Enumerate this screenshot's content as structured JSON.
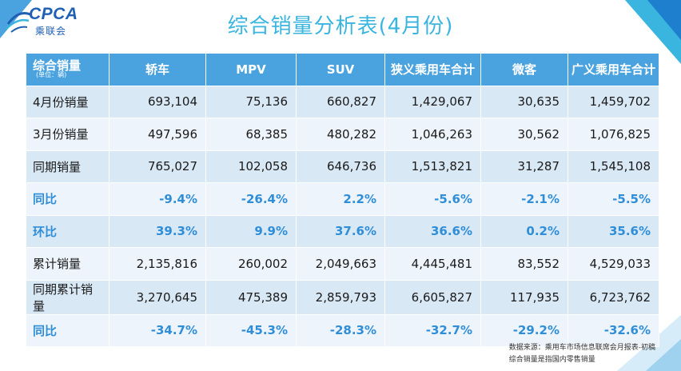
{
  "logo": {
    "name": "CPCA",
    "sub": "乘联会"
  },
  "title": "综合销量分析表(4月份)",
  "table": {
    "header_label": "综合销量",
    "unit": "(单位：辆)",
    "columns": [
      "轿车",
      "MPV",
      "SUV",
      "狭义乘用车合计",
      "微客",
      "广义乘用车合计"
    ],
    "rows": [
      {
        "label": "4月份销量",
        "values": [
          "693,104",
          "75,136",
          "660,827",
          "1,429,067",
          "30,635",
          "1,459,702"
        ],
        "pct": false
      },
      {
        "label": "3月份销量",
        "values": [
          "497,596",
          "68,385",
          "480,282",
          "1,046,263",
          "30,562",
          "1,076,825"
        ],
        "pct": false
      },
      {
        "label": "同期销量",
        "values": [
          "765,027",
          "102,058",
          "646,736",
          "1,513,821",
          "31,287",
          "1,545,108"
        ],
        "pct": false
      },
      {
        "label": "同比",
        "values": [
          "-9.4%",
          "-26.4%",
          "2.2%",
          "-5.6%",
          "-2.1%",
          "-5.5%"
        ],
        "pct": true
      },
      {
        "label": "环比",
        "values": [
          "39.3%",
          "9.9%",
          "37.6%",
          "36.6%",
          "0.2%",
          "35.6%"
        ],
        "pct": true
      },
      {
        "label": "累计销量",
        "values": [
          "2,135,816",
          "260,002",
          "2,049,663",
          "4,445,481",
          "83,552",
          "4,529,033"
        ],
        "pct": false
      },
      {
        "label": "同期累计销量",
        "values": [
          "3,270,645",
          "475,389",
          "2,859,793",
          "6,605,827",
          "117,935",
          "6,723,762"
        ],
        "pct": false
      },
      {
        "label": "同比",
        "values": [
          "-34.7%",
          "-45.3%",
          "-28.3%",
          "-32.7%",
          "-29.2%",
          "-32.6%"
        ],
        "pct": true
      }
    ]
  },
  "source": {
    "line1": "数据来源：乘用车市场信息联席会月报表-初稿",
    "line2": "综合销量是指国内零售销量"
  },
  "colors": {
    "header_bg": "#4aa3df",
    "title": "#39b5e0",
    "pct_text": "#2f8ed8",
    "row_odd": "#d9e8f5",
    "row_even": "#eef4fb"
  }
}
